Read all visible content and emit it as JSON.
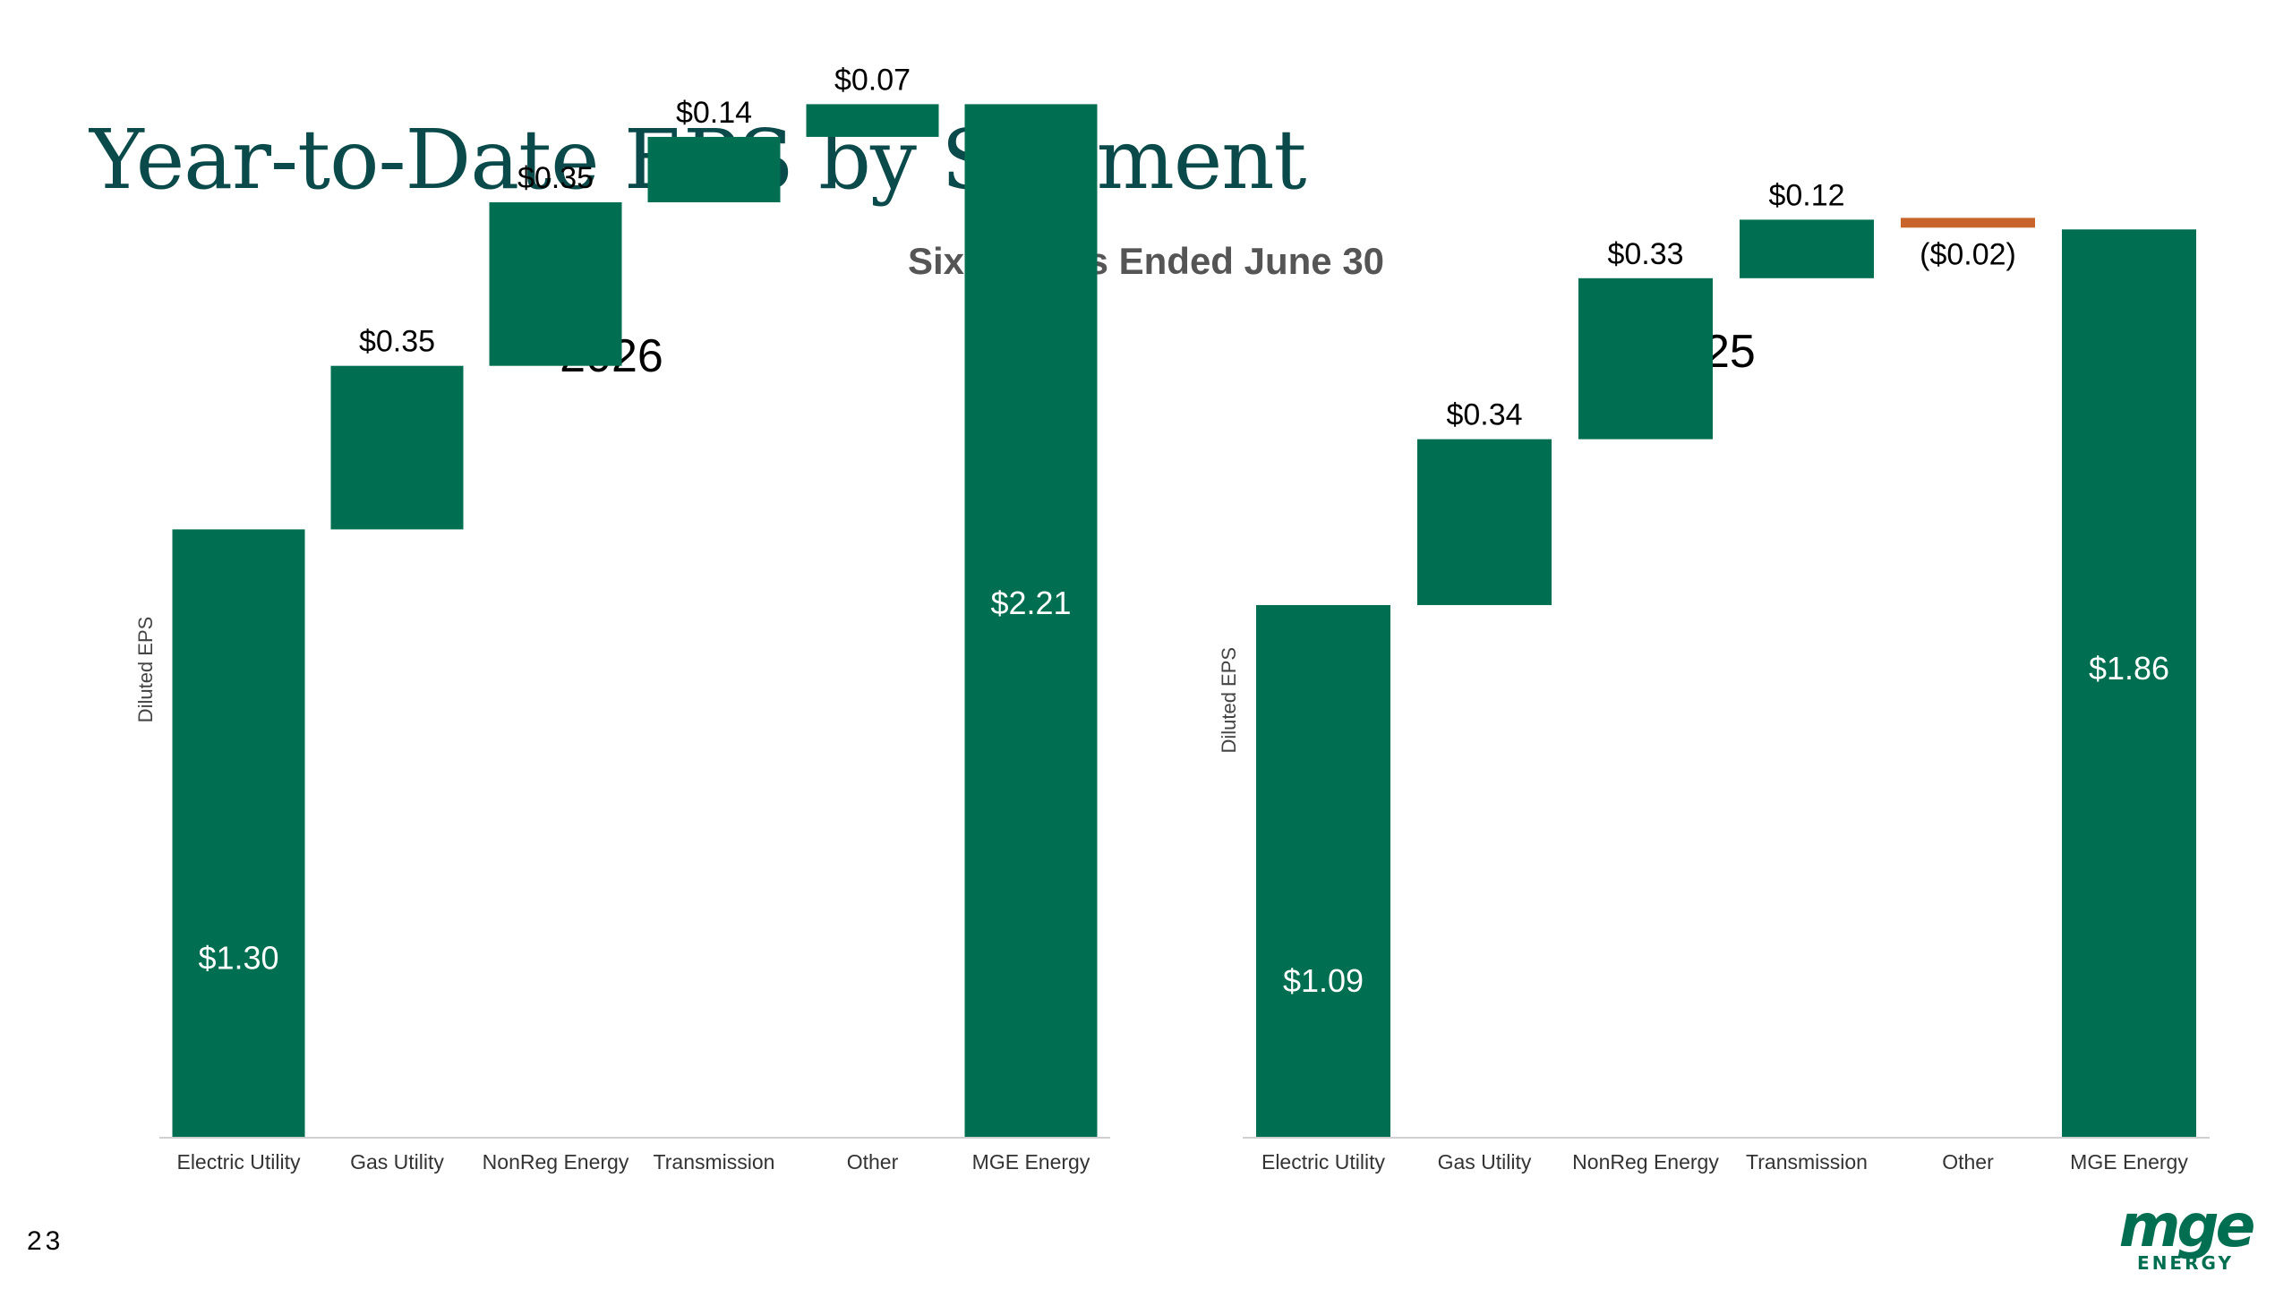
{
  "title": "Year-to-Date EPS by Segment",
  "subtitle": "Six Months Ended June 30",
  "slide_number": "23",
  "logo": {
    "main": "mge",
    "sub": "ENERGY"
  },
  "colors": {
    "positive": "#006e50",
    "negative": "#c8642a",
    "title": "#0b4a4a"
  },
  "chart_data": [
    {
      "type": "waterfall",
      "title": "2026",
      "ylabel": "Diluted EPS",
      "ylim": [
        0,
        2.4
      ],
      "categories": [
        "Electric Utility",
        "Gas Utility",
        "NonReg Energy",
        "Transmission",
        "Other",
        "MGE Energy"
      ],
      "values": [
        1.3,
        0.35,
        0.35,
        0.14,
        0.07,
        2.21
      ],
      "labels": [
        "$1.30",
        "$0.35",
        "$0.35",
        "$0.14",
        "$0.07",
        "$2.21"
      ],
      "total_index": [
        0,
        5
      ],
      "grid": false
    },
    {
      "type": "waterfall",
      "title": "2025",
      "ylabel": "Diluted EPS",
      "ylim": [
        0,
        2.2
      ],
      "categories": [
        "Electric Utility",
        "Gas Utility",
        "NonReg Energy",
        "Transmission",
        "Other",
        "MGE Energy"
      ],
      "values": [
        1.09,
        0.34,
        0.33,
        0.12,
        -0.02,
        1.86
      ],
      "labels": [
        "$1.09",
        "$0.34",
        "$0.33",
        "$0.12",
        "($0.02)",
        "$1.86"
      ],
      "total_index": [
        0,
        5
      ],
      "grid": false
    }
  ]
}
